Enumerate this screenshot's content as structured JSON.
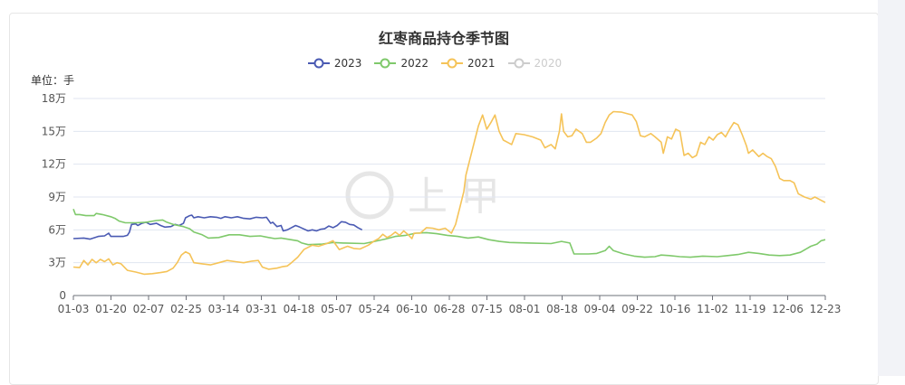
{
  "chart_data": {
    "type": "line",
    "title": "红枣商品持仓季节图",
    "unit_label": "单位：手",
    "watermark": "上甲",
    "y_ticks": [
      "0",
      "3万",
      "6万",
      "9万",
      "12万",
      "15万",
      "18万"
    ],
    "y_range": [
      0,
      180000
    ],
    "x_tick_labels": [
      "01-03",
      "01-20",
      "02-07",
      "02-25",
      "03-14",
      "03-31",
      "04-18",
      "05-07",
      "05-24",
      "06-10",
      "06-28",
      "07-15",
      "08-01",
      "08-18",
      "09-04",
      "09-22",
      "10-16",
      "11-02",
      "11-19",
      "12-06",
      "12-23"
    ],
    "x_range_days": [
      0,
      362
    ],
    "legend": [
      {
        "name": "2023",
        "color": "#4a5ab3",
        "active": true
      },
      {
        "name": "2022",
        "color": "#7fc96b",
        "active": true
      },
      {
        "name": "2021",
        "color": "#f5c358",
        "active": true
      },
      {
        "name": "2020",
        "color": "#cccccc",
        "active": false
      }
    ],
    "series": [
      {
        "name": "2023",
        "color": "#4a5ab3",
        "points": [
          [
            0,
            52000
          ],
          [
            5,
            52500
          ],
          [
            8,
            51500
          ],
          [
            12,
            54000
          ],
          [
            15,
            54500
          ],
          [
            17,
            57000
          ],
          [
            18,
            54000
          ],
          [
            24,
            54000
          ],
          [
            26,
            55000
          ],
          [
            27,
            58000
          ],
          [
            28,
            65000
          ],
          [
            30,
            65500
          ],
          [
            31,
            64000
          ],
          [
            33,
            66000
          ],
          [
            35,
            67000
          ],
          [
            37,
            65000
          ],
          [
            40,
            66000
          ],
          [
            42,
            64000
          ],
          [
            44,
            62500
          ],
          [
            47,
            63000
          ],
          [
            49,
            65000
          ],
          [
            51,
            64000
          ],
          [
            53,
            66000
          ],
          [
            54,
            71000
          ],
          [
            56,
            73000
          ],
          [
            57,
            73500
          ],
          [
            58,
            71000
          ],
          [
            60,
            72000
          ],
          [
            63,
            71000
          ],
          [
            66,
            72000
          ],
          [
            69,
            71500
          ],
          [
            71,
            70500
          ],
          [
            73,
            72000
          ],
          [
            76,
            71000
          ],
          [
            79,
            72000
          ],
          [
            82,
            70500
          ],
          [
            85,
            70000
          ],
          [
            88,
            71500
          ],
          [
            91,
            71000
          ],
          [
            93,
            71500
          ],
          [
            95,
            66000
          ],
          [
            96,
            67000
          ],
          [
            98,
            63000
          ],
          [
            100,
            64000
          ],
          [
            101,
            59000
          ],
          [
            103,
            60000
          ],
          [
            105,
            62000
          ],
          [
            107,
            64000
          ],
          [
            109,
            62500
          ],
          [
            113,
            59000
          ],
          [
            115,
            60000
          ],
          [
            117,
            59000
          ],
          [
            119,
            60500
          ],
          [
            121,
            61000
          ],
          [
            123,
            63500
          ],
          [
            125,
            62000
          ],
          [
            127,
            64000
          ],
          [
            129,
            67500
          ],
          [
            131,
            67000
          ],
          [
            133,
            65000
          ],
          [
            135,
            64500
          ],
          [
            137,
            62000
          ],
          [
            139,
            60000
          ]
        ]
      },
      {
        "name": "2022",
        "color": "#7fc96b",
        "points": [
          [
            0,
            79000
          ],
          [
            1,
            74000
          ],
          [
            3,
            74000
          ],
          [
            6,
            73000
          ],
          [
            10,
            73000
          ],
          [
            11,
            75000
          ],
          [
            14,
            74000
          ],
          [
            18,
            72000
          ],
          [
            20,
            70500
          ],
          [
            22,
            68000
          ],
          [
            25,
            66500
          ],
          [
            30,
            66500
          ],
          [
            35,
            67000
          ],
          [
            40,
            68500
          ],
          [
            43,
            69000
          ],
          [
            45,
            67000
          ],
          [
            48,
            65000
          ],
          [
            53,
            63000
          ],
          [
            56,
            61000
          ],
          [
            58,
            58000
          ],
          [
            62,
            55500
          ],
          [
            65,
            52500
          ],
          [
            70,
            53000
          ],
          [
            75,
            55500
          ],
          [
            80,
            55500
          ],
          [
            85,
            54000
          ],
          [
            90,
            54500
          ],
          [
            94,
            53000
          ],
          [
            97,
            52000
          ],
          [
            100,
            52500
          ],
          [
            103,
            51500
          ],
          [
            108,
            50000
          ],
          [
            110,
            48000
          ],
          [
            113,
            46500
          ],
          [
            120,
            47000
          ],
          [
            125,
            48500
          ],
          [
            130,
            48000
          ],
          [
            140,
            47500
          ],
          [
            145,
            49500
          ],
          [
            150,
            51500
          ],
          [
            155,
            54000
          ],
          [
            160,
            55000
          ],
          [
            165,
            57000
          ],
          [
            170,
            57500
          ],
          [
            175,
            56500
          ],
          [
            180,
            55000
          ],
          [
            185,
            54000
          ],
          [
            190,
            52500
          ],
          [
            195,
            53500
          ],
          [
            200,
            51000
          ],
          [
            205,
            49500
          ],
          [
            210,
            48500
          ],
          [
            220,
            48000
          ],
          [
            230,
            47500
          ],
          [
            235,
            49500
          ],
          [
            239,
            48000
          ],
          [
            241,
            38000
          ],
          [
            248,
            38000
          ],
          [
            252,
            38500
          ],
          [
            256,
            41000
          ],
          [
            258,
            45000
          ],
          [
            260,
            41000
          ],
          [
            265,
            38000
          ],
          [
            270,
            36000
          ],
          [
            275,
            35000
          ],
          [
            280,
            35500
          ],
          [
            283,
            37000
          ],
          [
            287,
            36500
          ],
          [
            292,
            35500
          ],
          [
            297,
            35000
          ],
          [
            303,
            36000
          ],
          [
            310,
            35500
          ],
          [
            315,
            36500
          ],
          [
            320,
            37500
          ],
          [
            325,
            39500
          ],
          [
            330,
            38500
          ],
          [
            335,
            37000
          ],
          [
            340,
            36500
          ],
          [
            345,
            37000
          ],
          [
            350,
            39500
          ],
          [
            355,
            45000
          ],
          [
            358,
            47000
          ],
          [
            360,
            50000
          ],
          [
            362,
            51000
          ]
        ]
      },
      {
        "name": "2021",
        "color": "#f5c358",
        "points": [
          [
            0,
            26000
          ],
          [
            3,
            25500
          ],
          [
            5,
            32000
          ],
          [
            7,
            28000
          ],
          [
            9,
            33000
          ],
          [
            11,
            30000
          ],
          [
            13,
            33000
          ],
          [
            15,
            31000
          ],
          [
            17,
            33500
          ],
          [
            19,
            28000
          ],
          [
            21,
            30000
          ],
          [
            23,
            29000
          ],
          [
            26,
            23000
          ],
          [
            30,
            21500
          ],
          [
            34,
            19500
          ],
          [
            38,
            20000
          ],
          [
            42,
            21000
          ],
          [
            45,
            22000
          ],
          [
            48,
            25000
          ],
          [
            50,
            30000
          ],
          [
            52,
            37000
          ],
          [
            54,
            40000
          ],
          [
            56,
            38000
          ],
          [
            58,
            30000
          ],
          [
            62,
            29000
          ],
          [
            66,
            28000
          ],
          [
            70,
            30000
          ],
          [
            74,
            32000
          ],
          [
            78,
            31000
          ],
          [
            82,
            30000
          ],
          [
            86,
            31500
          ],
          [
            89,
            32000
          ],
          [
            91,
            26000
          ],
          [
            94,
            24000
          ],
          [
            98,
            25000
          ],
          [
            101,
            26500
          ],
          [
            103,
            27000
          ],
          [
            105,
            30000
          ],
          [
            108,
            35000
          ],
          [
            111,
            42000
          ],
          [
            115,
            46000
          ],
          [
            118,
            45000
          ],
          [
            122,
            47500
          ],
          [
            125,
            50000
          ],
          [
            128,
            42000
          ],
          [
            132,
            45000
          ],
          [
            135,
            43000
          ],
          [
            138,
            42500
          ],
          [
            142,
            46000
          ],
          [
            145,
            50000
          ],
          [
            147,
            52000
          ],
          [
            149,
            56000
          ],
          [
            151,
            53000
          ],
          [
            153,
            55000
          ],
          [
            155,
            58000
          ],
          [
            157,
            55000
          ],
          [
            159,
            59000
          ],
          [
            161,
            56000
          ],
          [
            163,
            52000
          ],
          [
            164,
            57000
          ],
          [
            167,
            57000
          ],
          [
            170,
            62000
          ],
          [
            173,
            61500
          ],
          [
            176,
            60000
          ],
          [
            179,
            61500
          ],
          [
            182,
            57000
          ],
          [
            184,
            65000
          ],
          [
            186,
            80000
          ],
          [
            188,
            95000
          ],
          [
            189,
            110000
          ],
          [
            191,
            125000
          ],
          [
            193,
            140000
          ],
          [
            195,
            155000
          ],
          [
            197,
            165000
          ],
          [
            199,
            152000
          ],
          [
            201,
            158000
          ],
          [
            203,
            165000
          ],
          [
            205,
            150000
          ],
          [
            207,
            142000
          ],
          [
            209,
            140000
          ],
          [
            211,
            138000
          ],
          [
            213,
            148000
          ],
          [
            217,
            147000
          ],
          [
            221,
            145000
          ],
          [
            225,
            142000
          ],
          [
            227,
            135000
          ],
          [
            230,
            138000
          ],
          [
            232,
            134000
          ],
          [
            234,
            150000
          ],
          [
            235,
            166000
          ],
          [
            236,
            150000
          ],
          [
            238,
            145000
          ],
          [
            240,
            146000
          ],
          [
            242,
            152000
          ],
          [
            245,
            148000
          ],
          [
            247,
            140000
          ],
          [
            249,
            140000
          ],
          [
            252,
            144000
          ],
          [
            254,
            148000
          ],
          [
            256,
            158000
          ],
          [
            258,
            165000
          ],
          [
            260,
            168000
          ],
          [
            264,
            167500
          ],
          [
            267,
            166000
          ],
          [
            269,
            165000
          ],
          [
            271,
            159000
          ],
          [
            273,
            146000
          ],
          [
            275,
            145000
          ],
          [
            278,
            148000
          ],
          [
            280,
            145000
          ],
          [
            283,
            140000
          ],
          [
            284,
            130000
          ],
          [
            286,
            145000
          ],
          [
            288,
            143000
          ],
          [
            290,
            152000
          ],
          [
            292,
            150000
          ],
          [
            294,
            128000
          ],
          [
            296,
            130000
          ],
          [
            298,
            126000
          ],
          [
            300,
            128000
          ],
          [
            302,
            140000
          ],
          [
            304,
            138000
          ],
          [
            306,
            145000
          ],
          [
            308,
            142000
          ],
          [
            310,
            147000
          ],
          [
            312,
            149000
          ],
          [
            314,
            145000
          ],
          [
            316,
            152000
          ],
          [
            318,
            158000
          ],
          [
            320,
            156000
          ],
          [
            322,
            147000
          ],
          [
            324,
            137000
          ],
          [
            325,
            130000
          ],
          [
            327,
            133000
          ],
          [
            330,
            127000
          ],
          [
            332,
            130000
          ],
          [
            334,
            127000
          ],
          [
            336,
            125000
          ],
          [
            338,
            118000
          ],
          [
            340,
            107000
          ],
          [
            342,
            105000
          ],
          [
            345,
            105000
          ],
          [
            347,
            103000
          ],
          [
            349,
            93000
          ],
          [
            352,
            90000
          ],
          [
            355,
            88000
          ],
          [
            357,
            90000
          ],
          [
            362,
            85000
          ]
        ]
      }
    ]
  }
}
